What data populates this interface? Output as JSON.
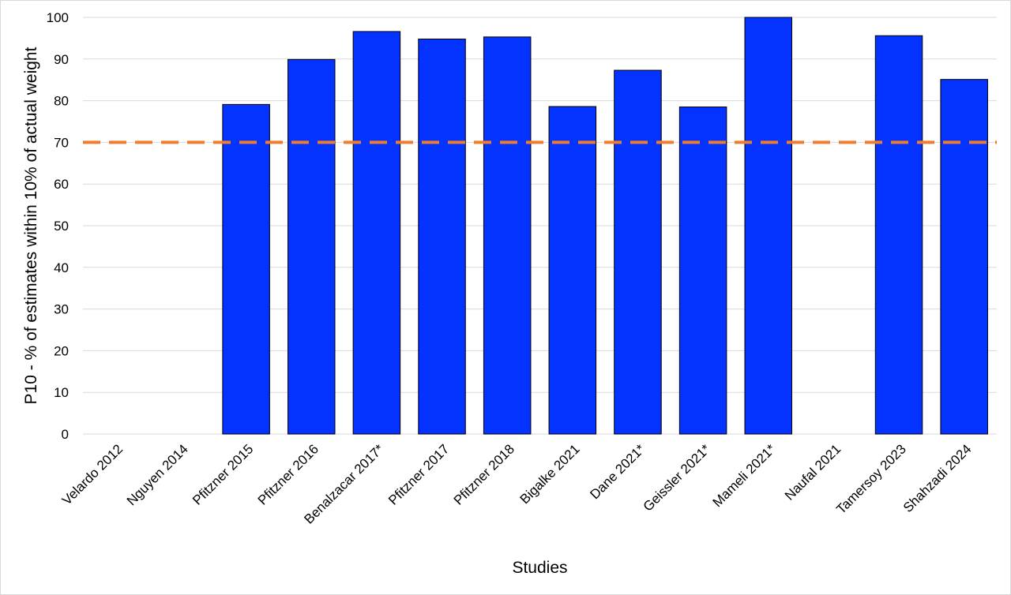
{
  "chart_data": {
    "type": "bar",
    "title": "",
    "xlabel": "Studies",
    "ylabel": "P10 - % of estimates within 10% of actual weight",
    "categories": [
      "Velardo 2012",
      "Nguyen 2014",
      "Pfitzner 2015",
      "Pfitzner 2016",
      "Benalzacar 2017*",
      "Pfitzner 2017",
      "Pfitzner 2018",
      "Bigalke 2021",
      "Dane 2021*",
      "Geissler 2021*",
      "Mameli 2021*",
      "Naufal 2021",
      "Tamersoy 2023",
      "Shahzadi 2024"
    ],
    "values": [
      null,
      null,
      79.1,
      89.9,
      96.6,
      94.8,
      95.3,
      78.6,
      87.3,
      78.5,
      100,
      null,
      95.6,
      85.1
    ],
    "ylim": [
      0,
      100
    ],
    "yticks": [
      "0",
      "10",
      "20",
      "30",
      "40",
      "50",
      "60",
      "70",
      "80",
      "90",
      "100"
    ],
    "ytick_values": [
      0,
      10,
      20,
      30,
      40,
      50,
      60,
      70,
      80,
      90,
      100
    ],
    "grid": true,
    "reference_line": {
      "value": 70,
      "style": "dashed"
    },
    "colors": {
      "bar": "#0433ff",
      "bar_edge": "#000000",
      "reference_line": "#ed7d31",
      "grid": "#d9d9d9"
    }
  }
}
